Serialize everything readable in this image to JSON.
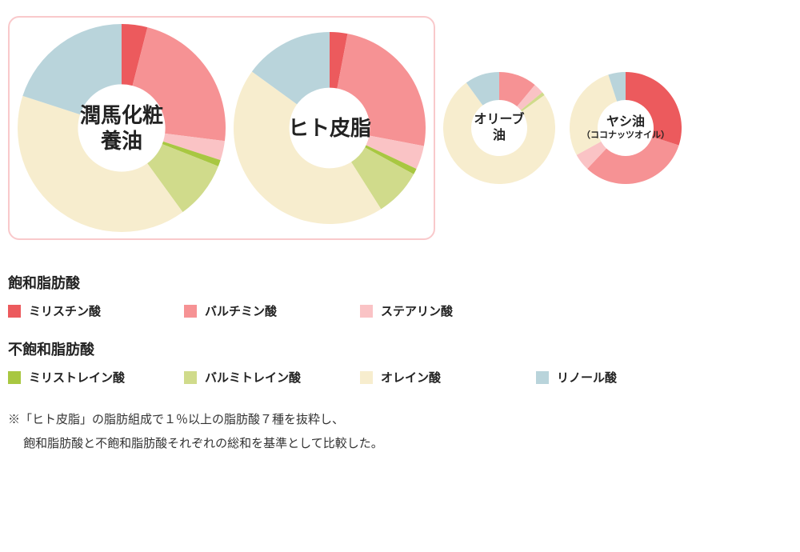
{
  "colors": {
    "myristic": "#ec5a5d",
    "palmitic": "#f69294",
    "stearic": "#fac3c5",
    "myristoleic": "#a8c741",
    "palmitoleic": "#d0db8b",
    "oleic": "#f7edce",
    "linoleic": "#b9d4db",
    "highlight_border": "#f9c9cb",
    "text": "#333333"
  },
  "order": [
    "myristic",
    "palmitic",
    "stearic",
    "myristoleic",
    "palmitoleic",
    "oleic",
    "linoleic"
  ],
  "charts": [
    {
      "id": "junma",
      "title": "潤馬化粧\n養油",
      "size": 260,
      "inner": 0.42,
      "title_fontsize": 26,
      "highlighted": true,
      "values": {
        "myristic": 4,
        "palmitic": 23,
        "stearic": 3,
        "myristoleic": 1,
        "palmitoleic": 9,
        "oleic": 40,
        "linoleic": 20
      }
    },
    {
      "id": "sebum",
      "title": "ヒト皮脂",
      "size": 240,
      "inner": 0.42,
      "title_fontsize": 26,
      "highlighted": true,
      "values": {
        "myristic": 3,
        "palmitic": 25,
        "stearic": 4,
        "myristoleic": 1,
        "palmitoleic": 8,
        "oleic": 44,
        "linoleic": 15
      }
    },
    {
      "id": "olive",
      "title": "オリーブ\n油",
      "size": 140,
      "inner": 0.5,
      "title_fontsize": 16,
      "highlighted": false,
      "values": {
        "myristic": 0,
        "palmitic": 11,
        "stearic": 3,
        "myristoleic": 0,
        "palmitoleic": 1,
        "oleic": 75,
        "linoleic": 10
      }
    },
    {
      "id": "coconut",
      "title": "ヤシ油",
      "subtitle": "（ココナッツオイル）",
      "size": 140,
      "inner": 0.5,
      "title_fontsize": 16,
      "highlighted": false,
      "values": {
        "myristic": 30,
        "palmitic": 32,
        "stearic": 5,
        "myristoleic": 0,
        "palmitoleic": 0,
        "oleic": 28,
        "linoleic": 5
      }
    }
  ],
  "legend": {
    "saturated": {
      "title": "飽和脂肪酸",
      "items": [
        {
          "key": "myristic",
          "label": "ミリスチン酸"
        },
        {
          "key": "palmitic",
          "label": "バルチミン酸"
        },
        {
          "key": "stearic",
          "label": "ステアリン酸"
        }
      ]
    },
    "unsaturated": {
      "title": "不飽和脂肪酸",
      "items": [
        {
          "key": "myristoleic",
          "label": "ミリストレイン酸"
        },
        {
          "key": "palmitoleic",
          "label": "バルミトレイン酸"
        },
        {
          "key": "oleic",
          "label": "オレイン酸"
        },
        {
          "key": "linoleic",
          "label": "リノール酸"
        }
      ]
    }
  },
  "footnote": {
    "line1": "※「ヒト皮脂」の脂肪組成で１％以上の脂肪酸７種を抜粋し、",
    "line2": "　 飽和脂肪酸と不飽和脂肪酸それぞれの総和を基準として比較した。"
  }
}
